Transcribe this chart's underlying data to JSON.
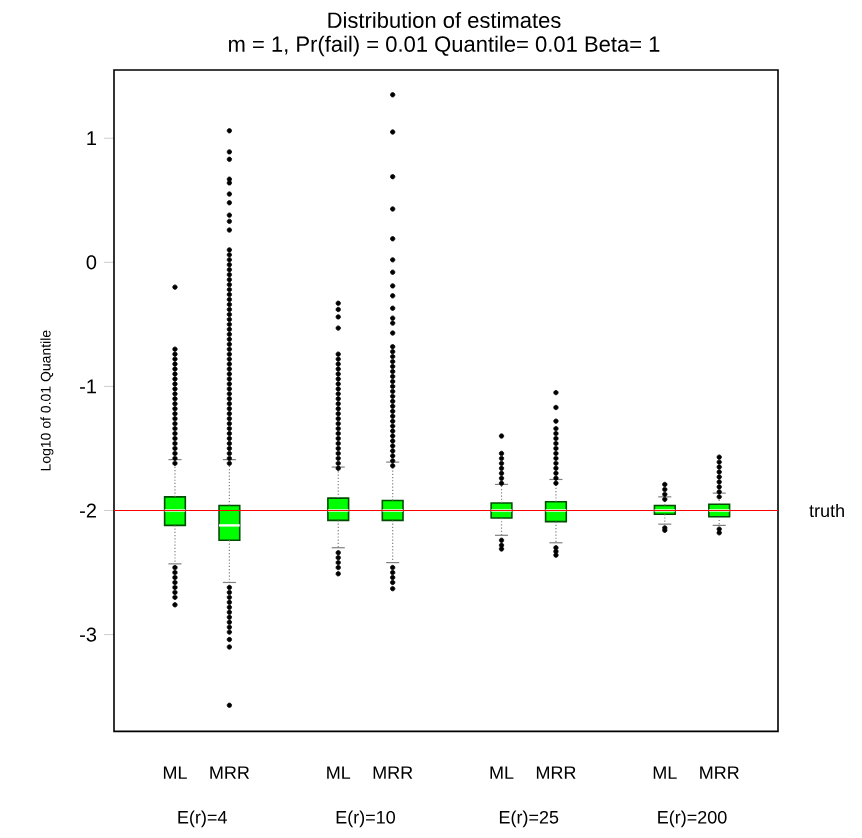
{
  "chart_data": {
    "type": "box",
    "title": "Distribution of estimates",
    "subtitle": "m = 1, Pr(fail) = 0.01 Quantile= 0.01 Beta= 1",
    "ylabel": "Log10 of 0.01 Quantile",
    "categories": [
      "ML",
      "MRR",
      "ML",
      "MRR",
      "ML",
      "MRR",
      "ML",
      "MRR"
    ],
    "annotations": [
      "E(r)=4",
      "E(r)=10",
      "E(r)=25",
      "E(r)=200"
    ],
    "color": "#00ff00",
    "boxes": [
      {
        "low": -2.43,
        "q1": -2.12,
        "median": -2.0,
        "q3": -1.89,
        "high": -1.59,
        "outliers": [
          -1.62,
          -1.58,
          -1.54,
          -1.5,
          -1.46,
          -1.42,
          -1.38,
          -1.34,
          -1.3,
          -1.26,
          -1.22,
          -1.18,
          -1.14,
          -1.1,
          -1.06,
          -1.02,
          -0.98,
          -0.94,
          -0.9,
          -0.86,
          -0.82,
          -0.78,
          -0.74,
          -0.7,
          -0.2,
          -2.46,
          -2.5,
          -2.54,
          -2.58,
          -2.62,
          -2.66,
          -2.7,
          -2.76
        ]
      },
      {
        "low": -2.58,
        "q1": -2.24,
        "median": -2.12,
        "q3": -1.96,
        "high": -1.59,
        "outliers": [
          -1.62,
          -1.58,
          -1.54,
          -1.5,
          -1.46,
          -1.42,
          -1.38,
          -1.34,
          -1.3,
          -1.26,
          -1.22,
          -1.18,
          -1.14,
          -1.1,
          -1.06,
          -1.02,
          -0.98,
          -0.94,
          -0.9,
          -0.86,
          -0.82,
          -0.78,
          -0.74,
          -0.7,
          -0.66,
          -0.62,
          -0.58,
          -0.54,
          -0.5,
          -0.46,
          -0.42,
          -0.38,
          -0.34,
          -0.3,
          -0.26,
          -0.22,
          -0.18,
          -0.14,
          -0.1,
          -0.06,
          -0.02,
          0.02,
          0.06,
          0.1,
          0.26,
          0.33,
          0.38,
          0.48,
          0.55,
          0.64,
          0.67,
          0.83,
          0.89,
          1.06,
          -2.62,
          -2.66,
          -2.7,
          -2.74,
          -2.78,
          -2.82,
          -2.86,
          -2.9,
          -2.94,
          -2.98,
          -3.04,
          -3.1,
          -3.57
        ]
      },
      {
        "low": -2.3,
        "q1": -2.08,
        "median": -2.0,
        "q3": -1.9,
        "high": -1.65,
        "outliers": [
          -1.66,
          -1.62,
          -1.58,
          -1.54,
          -1.5,
          -1.46,
          -1.42,
          -1.38,
          -1.34,
          -1.3,
          -1.26,
          -1.22,
          -1.18,
          -1.14,
          -1.1,
          -1.06,
          -1.02,
          -0.98,
          -0.94,
          -0.9,
          -0.86,
          -0.82,
          -0.78,
          -0.74,
          -0.53,
          -0.44,
          -0.38,
          -0.33,
          -2.34,
          -2.38,
          -2.42,
          -2.46,
          -2.51
        ]
      },
      {
        "low": -2.42,
        "q1": -2.08,
        "median": -2.0,
        "q3": -1.92,
        "high": -1.61,
        "outliers": [
          -1.64,
          -1.6,
          -1.56,
          -1.52,
          -1.48,
          -1.44,
          -1.4,
          -1.36,
          -1.32,
          -1.28,
          -1.24,
          -1.2,
          -1.16,
          -1.12,
          -1.08,
          -1.04,
          -1.0,
          -0.96,
          -0.92,
          -0.88,
          -0.84,
          -0.8,
          -0.76,
          -0.72,
          -0.68,
          -0.57,
          -0.49,
          -0.45,
          -0.37,
          -0.27,
          -0.19,
          -0.08,
          0.02,
          0.19,
          0.43,
          0.69,
          1.05,
          1.35,
          -2.46,
          -2.5,
          -2.54,
          -2.58,
          -2.63
        ]
      },
      {
        "low": -2.2,
        "q1": -2.06,
        "median": -2.0,
        "q3": -1.94,
        "high": -1.79,
        "outliers": [
          -1.78,
          -1.74,
          -1.7,
          -1.66,
          -1.62,
          -1.58,
          -1.54,
          -1.4,
          -2.24,
          -2.28,
          -2.31
        ]
      },
      {
        "low": -2.26,
        "q1": -2.09,
        "median": -2.0,
        "q3": -1.93,
        "high": -1.75,
        "outliers": [
          -1.78,
          -1.74,
          -1.7,
          -1.66,
          -1.62,
          -1.58,
          -1.54,
          -1.5,
          -1.46,
          -1.42,
          -1.38,
          -1.34,
          -1.28,
          -1.17,
          -1.05,
          -2.3,
          -2.33,
          -2.36
        ]
      },
      {
        "low": -2.11,
        "q1": -2.03,
        "median": -2.0,
        "q3": -1.96,
        "high": -1.89,
        "outliers": [
          -1.91,
          -1.87,
          -1.83,
          -1.79,
          -2.14,
          -2.16
        ]
      },
      {
        "low": -2.12,
        "q1": -2.05,
        "median": -2.0,
        "q3": -1.95,
        "high": -1.86,
        "outliers": [
          -1.89,
          -1.85,
          -1.81,
          -1.77,
          -1.73,
          -1.69,
          -1.65,
          -1.61,
          -1.57,
          -2.15,
          -2.18
        ]
      }
    ],
    "ref_lines": [
      {
        "axis": "y",
        "value": -2,
        "label": "truth",
        "color": "#ff0000"
      }
    ],
    "ylim": [
      -3.78,
      1.55
    ],
    "yticks": [
      -3,
      -2,
      -1,
      0,
      1
    ]
  }
}
